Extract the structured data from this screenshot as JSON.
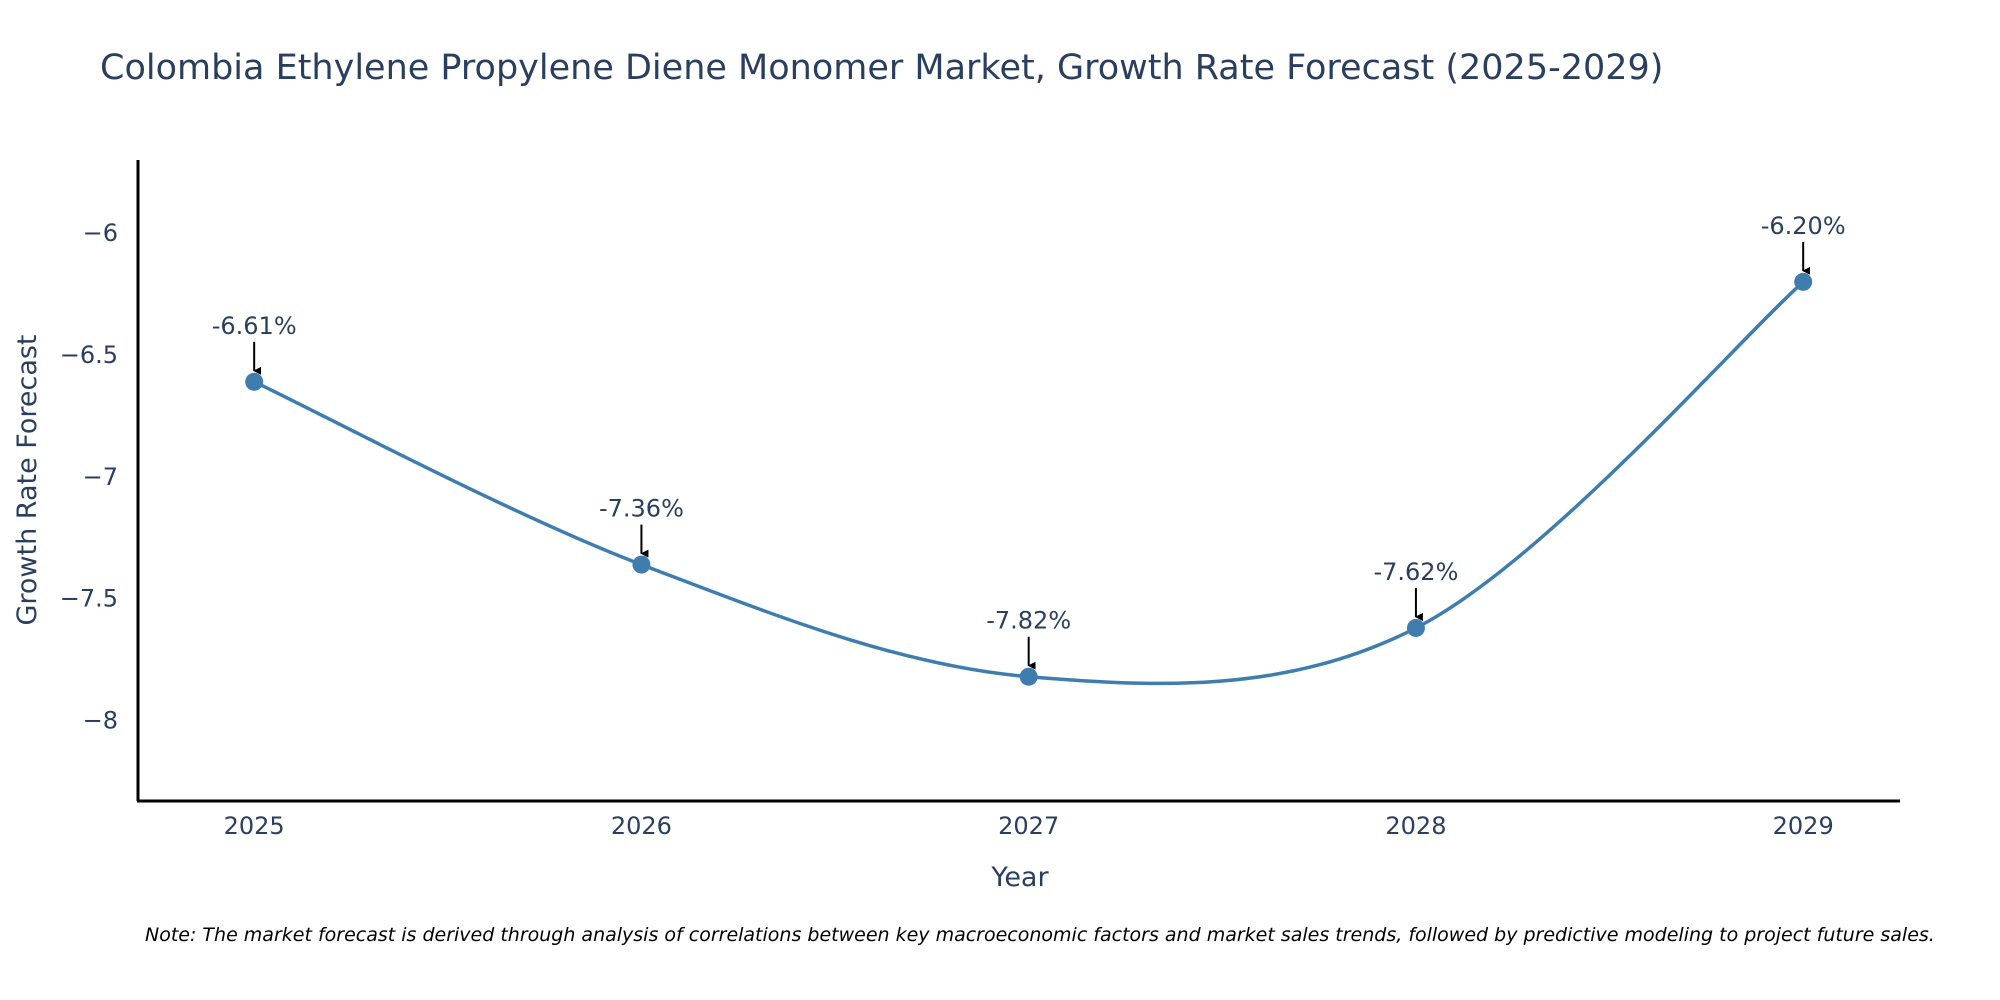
{
  "chart_data": {
    "type": "line",
    "title": "Colombia Ethylene Propylene Diene Monomer Market, Growth Rate Forecast (2025-2029)",
    "xlabel": "Year",
    "ylabel": "Growth Rate Forecast",
    "x": [
      2025,
      2026,
      2027,
      2028,
      2029
    ],
    "categories": [
      "2025",
      "2026",
      "2027",
      "2028",
      "2029"
    ],
    "series": [
      {
        "name": "Growth Rate Forecast",
        "values": [
          -6.61,
          -7.36,
          -7.82,
          -7.62,
          -6.2
        ],
        "labels": [
          "-6.61%",
          "-7.36%",
          "-7.82%",
          "-7.62%",
          "-6.20%"
        ]
      }
    ],
    "yticks": [
      -6,
      -6.5,
      -7,
      -7.5,
      -8
    ],
    "ytick_labels": [
      "−6",
      "−6.5",
      "−7",
      "−7.5",
      "−8"
    ],
    "xlim": [
      2024.7,
      2029.25
    ],
    "ylim": [
      -8.33,
      -5.7
    ],
    "grid": false,
    "line_shape": "spline",
    "line_color": "#3e7dad",
    "marker_color": "#3e7dad",
    "note": "Note: The market forecast is derived through analysis of correlations between key macroeconomic factors and market sales trends, followed by predictive modeling to project future sales."
  }
}
